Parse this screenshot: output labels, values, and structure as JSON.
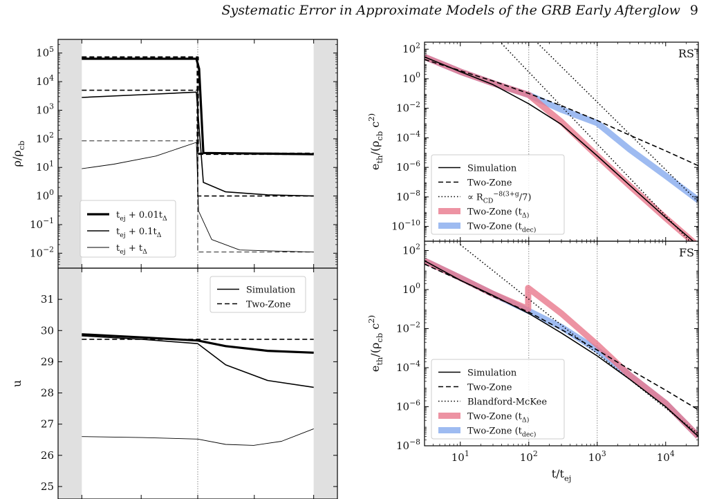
{
  "header": {
    "title": "Systematic Error in Approximate Models of the GRB Early Afterglow",
    "page_number": "9"
  },
  "chart_data": [
    {
      "id": "density",
      "type": "line",
      "ylabel": "ρ/ρ_cb",
      "yscale": "log",
      "ylim": [
        0.003,
        300000
      ],
      "xlim": [
        0,
        1
      ],
      "y_ticks": [
        {
          "v": 100000.0,
          "label": "10^5"
        },
        {
          "v": 10000.0,
          "label": "10^4"
        },
        {
          "v": 1000.0,
          "label": "10^3"
        },
        {
          "v": 100.0,
          "label": "10^2"
        },
        {
          "v": 10,
          "label": "10^1"
        },
        {
          "v": 1,
          "label": "10^0"
        },
        {
          "v": 0.1,
          "label": "10^-1"
        },
        {
          "v": 0.01,
          "label": "10^-2"
        }
      ],
      "shaded_regions": [
        [
          0,
          0.085
        ],
        [
          0.915,
          1
        ]
      ],
      "vlines": [
        0.5
      ],
      "legend": {
        "position": "lower-left",
        "entries": [
          {
            "label": "t_ej + 0.01t_Δ",
            "style": "thick"
          },
          {
            "label": "t_ej + 0.1t_Δ",
            "style": "medium"
          },
          {
            "label": "t_ej + t_Δ",
            "style": "thin"
          }
        ]
      },
      "series": [
        {
          "style": "thick",
          "dash": "solid",
          "points": [
            [
              0.085,
              63000
            ],
            [
              0.495,
              63000
            ],
            [
              0.505,
              28000
            ],
            [
              0.52,
              32
            ],
            [
              0.915,
              29
            ]
          ]
        },
        {
          "style": "thick",
          "dash": "dashed",
          "points": [
            [
              0.085,
              70000
            ],
            [
              0.5,
              70000
            ],
            [
              0.5,
              30
            ],
            [
              0.915,
              30
            ]
          ]
        },
        {
          "style": "medium",
          "dash": "solid",
          "points": [
            [
              0.085,
              2800
            ],
            [
              0.3,
              3500
            ],
            [
              0.495,
              4300
            ],
            [
              0.52,
              3
            ],
            [
              0.6,
              1.4
            ],
            [
              0.75,
              1.1
            ],
            [
              0.915,
              1
            ]
          ]
        },
        {
          "style": "medium",
          "dash": "dashed",
          "points": [
            [
              0.085,
              5000
            ],
            [
              0.5,
              5000
            ],
            [
              0.5,
              1
            ],
            [
              0.915,
              1
            ]
          ]
        },
        {
          "style": "thin",
          "dash": "solid",
          "points": [
            [
              0.085,
              9
            ],
            [
              0.2,
              13
            ],
            [
              0.35,
              25
            ],
            [
              0.495,
              75
            ],
            [
              0.503,
              0.3
            ],
            [
              0.55,
              0.03
            ],
            [
              0.65,
              0.013
            ],
            [
              0.915,
              0.011
            ]
          ]
        },
        {
          "style": "thin",
          "dash": "dashed",
          "points": [
            [
              0.085,
              85
            ],
            [
              0.5,
              85
            ],
            [
              0.5,
              0.011
            ],
            [
              0.915,
              0.011
            ]
          ]
        }
      ]
    },
    {
      "id": "lorentz",
      "type": "line",
      "ylabel": "u",
      "yscale": "linear",
      "ylim": [
        24.6,
        32.0
      ],
      "xlim": [
        0,
        1
      ],
      "y_ticks": [
        {
          "v": 31,
          "label": "31"
        },
        {
          "v": 30,
          "label": "30"
        },
        {
          "v": 29,
          "label": "29"
        },
        {
          "v": 28,
          "label": "28"
        },
        {
          "v": 27,
          "label": "27"
        },
        {
          "v": 26,
          "label": "26"
        },
        {
          "v": 25,
          "label": "25"
        }
      ],
      "shaded_regions": [
        [
          0,
          0.085
        ],
        [
          0.915,
          1
        ]
      ],
      "vlines": [
        0.5
      ],
      "legend": {
        "position": "upper-right",
        "entries": [
          {
            "label": "Simulation",
            "style": "medium",
            "dash": "solid"
          },
          {
            "label": "Two-Zone",
            "style": "medium",
            "dash": "dashed"
          }
        ]
      },
      "series": [
        {
          "style": "thick",
          "dash": "solid",
          "points": [
            [
              0.085,
              29.88
            ],
            [
              0.3,
              29.78
            ],
            [
              0.5,
              29.68
            ],
            [
              0.6,
              29.5
            ],
            [
              0.75,
              29.35
            ],
            [
              0.915,
              29.29
            ]
          ]
        },
        {
          "style": "medium",
          "dash": "solid",
          "points": [
            [
              0.085,
              29.83
            ],
            [
              0.3,
              29.72
            ],
            [
              0.5,
              29.58
            ],
            [
              0.6,
              28.9
            ],
            [
              0.75,
              28.4
            ],
            [
              0.915,
              28.18
            ]
          ]
        },
        {
          "style": "medium",
          "dash": "dashed",
          "points": [
            [
              0.085,
              29.72
            ],
            [
              0.915,
              29.72
            ]
          ]
        },
        {
          "style": "thin",
          "dash": "solid",
          "points": [
            [
              0.085,
              26.6
            ],
            [
              0.3,
              26.57
            ],
            [
              0.5,
              26.52
            ],
            [
              0.6,
              26.35
            ],
            [
              0.7,
              26.32
            ],
            [
              0.8,
              26.45
            ],
            [
              0.915,
              26.85
            ]
          ]
        }
      ]
    },
    {
      "id": "rs",
      "type": "line",
      "corner_label": "RS",
      "ylabel": "e_th/(ρ_cb c^2)",
      "xscale": "log",
      "yscale": "log",
      "xlim": [
        3,
        30000
      ],
      "ylim": [
        1e-11,
        300
      ],
      "y_ticks": [
        {
          "v": 100,
          "label": "10^2"
        },
        {
          "v": 1,
          "label": "10^0"
        },
        {
          "v": 0.01,
          "label": "10^-2"
        },
        {
          "v": 0.0001,
          "label": "10^-4"
        },
        {
          "v": 1e-06,
          "label": "10^-6"
        },
        {
          "v": 1e-08,
          "label": "10^-8"
        },
        {
          "v": 1e-10,
          "label": "10^-10"
        }
      ],
      "vlines": [
        100,
        1000
      ],
      "legend": {
        "position": "lower-left",
        "entries": [
          {
            "label": "Simulation",
            "kind": "line",
            "dash": "solid"
          },
          {
            "label": "Two-Zone",
            "kind": "line",
            "dash": "dashed"
          },
          {
            "label": "∝ R_CD^(-8(3+g)/7)",
            "kind": "line",
            "dash": "dotted"
          },
          {
            "label": "Two-Zone (t_Δ)",
            "kind": "band",
            "color": "#e8788c"
          },
          {
            "label": "Two-Zone (t_dec)",
            "kind": "band",
            "color": "#86aaee"
          }
        ]
      },
      "series": [
        {
          "name": "Two-Zone (t_dec)",
          "kind": "band",
          "color": "#86aaee",
          "points": [
            [
              3,
              30
            ],
            [
              10,
              3
            ],
            [
              30,
              0.5
            ],
            [
              100,
              0.08
            ],
            [
              300,
              0.008
            ],
            [
              1000,
              0.001
            ],
            [
              3000,
              1.6e-05
            ],
            [
              10000,
              2.7e-07
            ],
            [
              30000,
              6e-09
            ]
          ]
        },
        {
          "name": "Two-Zone (t_Δ)",
          "kind": "band",
          "color": "#e8788c",
          "points": [
            [
              3,
              30
            ],
            [
              10,
              3
            ],
            [
              30,
              0.5
            ],
            [
              100,
              0.08
            ],
            [
              300,
              0.0012
            ],
            [
              1000,
              6e-06
            ],
            [
              3000,
              5.5e-08
            ],
            [
              10000,
              3.7e-10
            ],
            [
              30000,
              4.5e-12
            ]
          ]
        },
        {
          "name": "Simulation",
          "dash": "solid",
          "points": [
            [
              3,
              30
            ],
            [
              10,
              3
            ],
            [
              30,
              0.4
            ],
            [
              100,
              0.02
            ],
            [
              300,
              0.0008
            ],
            [
              1000,
              6e-06
            ],
            [
              3000,
              6e-08
            ],
            [
              10000,
              4e-10
            ],
            [
              30000,
              5e-12
            ]
          ]
        },
        {
          "name": "Two-Zone",
          "dash": "dashed",
          "points": [
            [
              3,
              20
            ],
            [
              10,
              3.5
            ],
            [
              30,
              0.7
            ],
            [
              100,
              0.1
            ],
            [
              300,
              0.015
            ],
            [
              1000,
              0.0015
            ],
            [
              3000,
              0.00015
            ],
            [
              10000,
              1.3e-05
            ],
            [
              30000,
              1.3e-06
            ]
          ]
        },
        {
          "name": "dotted-1",
          "dash": "dotted",
          "points": [
            [
              30,
              1000
            ],
            [
              30000,
              2.5e-12
            ]
          ]
        },
        {
          "name": "dotted-2",
          "dash": "dotted",
          "points": [
            [
              100,
              1000
            ],
            [
              30000,
              4.5e-09
            ]
          ]
        }
      ]
    },
    {
      "id": "fs",
      "type": "line",
      "corner_label": "FS",
      "ylabel": "e_th/(ρ_cb c^2)",
      "xlabel": "t/t_ej",
      "xscale": "log",
      "yscale": "log",
      "xlim": [
        3,
        30000
      ],
      "ylim": [
        1e-08,
        300
      ],
      "x_ticks": [
        {
          "v": 10,
          "label": "10^1"
        },
        {
          "v": 100,
          "label": "10^2"
        },
        {
          "v": 1000,
          "label": "10^3"
        },
        {
          "v": 10000,
          "label": "10^4"
        }
      ],
      "y_ticks": [
        {
          "v": 100,
          "label": "10^2"
        },
        {
          "v": 1,
          "label": "10^0"
        },
        {
          "v": 0.01,
          "label": "10^-2"
        },
        {
          "v": 0.0001,
          "label": "10^-4"
        },
        {
          "v": 1e-06,
          "label": "10^-6"
        },
        {
          "v": 1e-08,
          "label": "10^-8"
        }
      ],
      "vlines": [
        100,
        1000
      ],
      "legend": {
        "position": "lower-left",
        "entries": [
          {
            "label": "Simulation",
            "kind": "line",
            "dash": "solid"
          },
          {
            "label": "Two-Zone",
            "kind": "line",
            "dash": "dashed"
          },
          {
            "label": "Blandford-McKee",
            "kind": "line",
            "dash": "dotted"
          },
          {
            "label": "Two-Zone (t_Δ)",
            "kind": "band",
            "color": "#e8788c"
          },
          {
            "label": "Two-Zone (t_dec)",
            "kind": "band",
            "color": "#86aaee"
          }
        ]
      },
      "series": [
        {
          "name": "Two-Zone (t_dec)",
          "kind": "band",
          "color": "#86aaee",
          "points": [
            [
              3,
              30
            ],
            [
              10,
              4
            ],
            [
              30,
              0.6
            ],
            [
              100,
              0.08
            ],
            [
              300,
              0.012
            ],
            [
              1000,
              0.0008
            ],
            [
              3000,
              4e-05
            ],
            [
              10000,
              1.5e-06
            ],
            [
              30000,
              3e-08
            ]
          ]
        },
        {
          "name": "Two-Zone (t_Δ)",
          "kind": "band",
          "color": "#e8788c",
          "points": [
            [
              3,
              30
            ],
            [
              10,
              4
            ],
            [
              30,
              0.6
            ],
            [
              98,
              0.1
            ],
            [
              98,
              1.2
            ],
            [
              300,
              0.06
            ],
            [
              1000,
              0.0015
            ],
            [
              3000,
              4e-05
            ],
            [
              10000,
              1.5e-06
            ],
            [
              30000,
              3e-08
            ]
          ]
        },
        {
          "name": "Simulation",
          "dash": "solid",
          "points": [
            [
              3,
              30
            ],
            [
              10,
              3
            ],
            [
              30,
              0.5
            ],
            [
              100,
              0.06
            ],
            [
              300,
              0.006
            ],
            [
              1000,
              0.0004
            ],
            [
              3000,
              2.5e-05
            ],
            [
              10000,
              1e-06
            ],
            [
              30000,
              3e-08
            ]
          ]
        },
        {
          "name": "Two-Zone",
          "dash": "dashed",
          "points": [
            [
              3,
              20
            ],
            [
              10,
              3
            ],
            [
              30,
              0.45
            ],
            [
              100,
              0.07
            ],
            [
              300,
              0.009
            ],
            [
              1000,
              0.0008
            ],
            [
              3000,
              8e-05
            ],
            [
              10000,
              7e-06
            ],
            [
              30000,
              7e-07
            ]
          ]
        },
        {
          "name": "Blandford-McKee",
          "dash": "dotted",
          "points": [
            [
              10,
              200
            ],
            [
              30000,
              4e-08
            ]
          ]
        }
      ]
    }
  ]
}
